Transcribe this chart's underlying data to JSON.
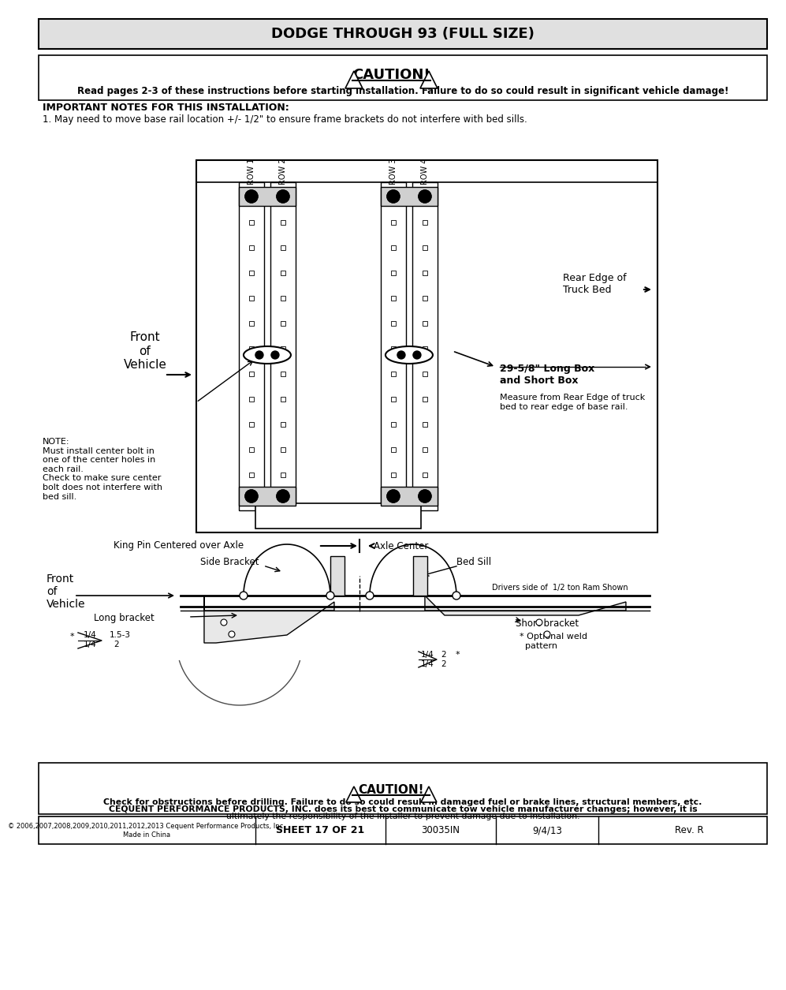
{
  "title": "DODGE THROUGH 93 (FULL SIZE)",
  "caution_text": "CAUTION!",
  "caution_sub": "Read pages 2-3 of these instructions before starting installation. Failure to do so could result in significant vehicle damage!",
  "important_notes_title": "IMPORTANT NOTES FOR THIS INSTALLATION:",
  "note1": "1. May need to move base rail location +/- 1/2\" to ensure frame brackets do not interfere with bed sills.",
  "rear_edge_label": "Rear Edge of\nTruck Bed",
  "front_vehicle_label": "Front\nof\nVehicle",
  "note_label": "NOTE:\nMust install center bolt in\none of the center holes in\neach rail.\nCheck to make sure center\nbolt does not interfere with\nbed sill.",
  "dimension_label": "29-5/8\" Long Box\nand Short Box",
  "dimension_sub": "Measure from Rear Edge of truck\nbed to rear edge of base rail.",
  "king_pin_label": "King Pin Centered over Axle",
  "axle_center_label": "Axle Center",
  "side_bracket_label": "Side Bracket",
  "bed_sill_label": "Bed Sill",
  "front_vehicle2_label": "Front\nof\nVehicle",
  "long_bracket_label": "Long bracket",
  "short_bracket_label": "Short bracket",
  "drivers_side_label": "Drivers side of  1/2 ton Ram Shown",
  "optional_weld_label": "* Optional weld\n  pattern",
  "caution2_sub1": "Check for obstructions before drilling. Failure to do so could result in damaged fuel or brake lines, structural members, etc.",
  "caution2_sub2": "CEQUENT PERFORMANCE PRODUCTS, INC. does its best to communicate tow vehicle manufacturer changes; however, it is",
  "caution2_sub3": "ultimately the responsibility of the installer to prevent damage due to installation.",
  "footer_copy": "© 2006,2007,2008,2009,2010,2011,2012,2013 Cequent Performance Products, Inc.\nMade in China",
  "footer_sheet": "SHEET 17 OF 21",
  "footer_part": "30035IN",
  "footer_date": "9/4/13",
  "footer_rev": "Rev. R",
  "bg_color": "#ffffff"
}
